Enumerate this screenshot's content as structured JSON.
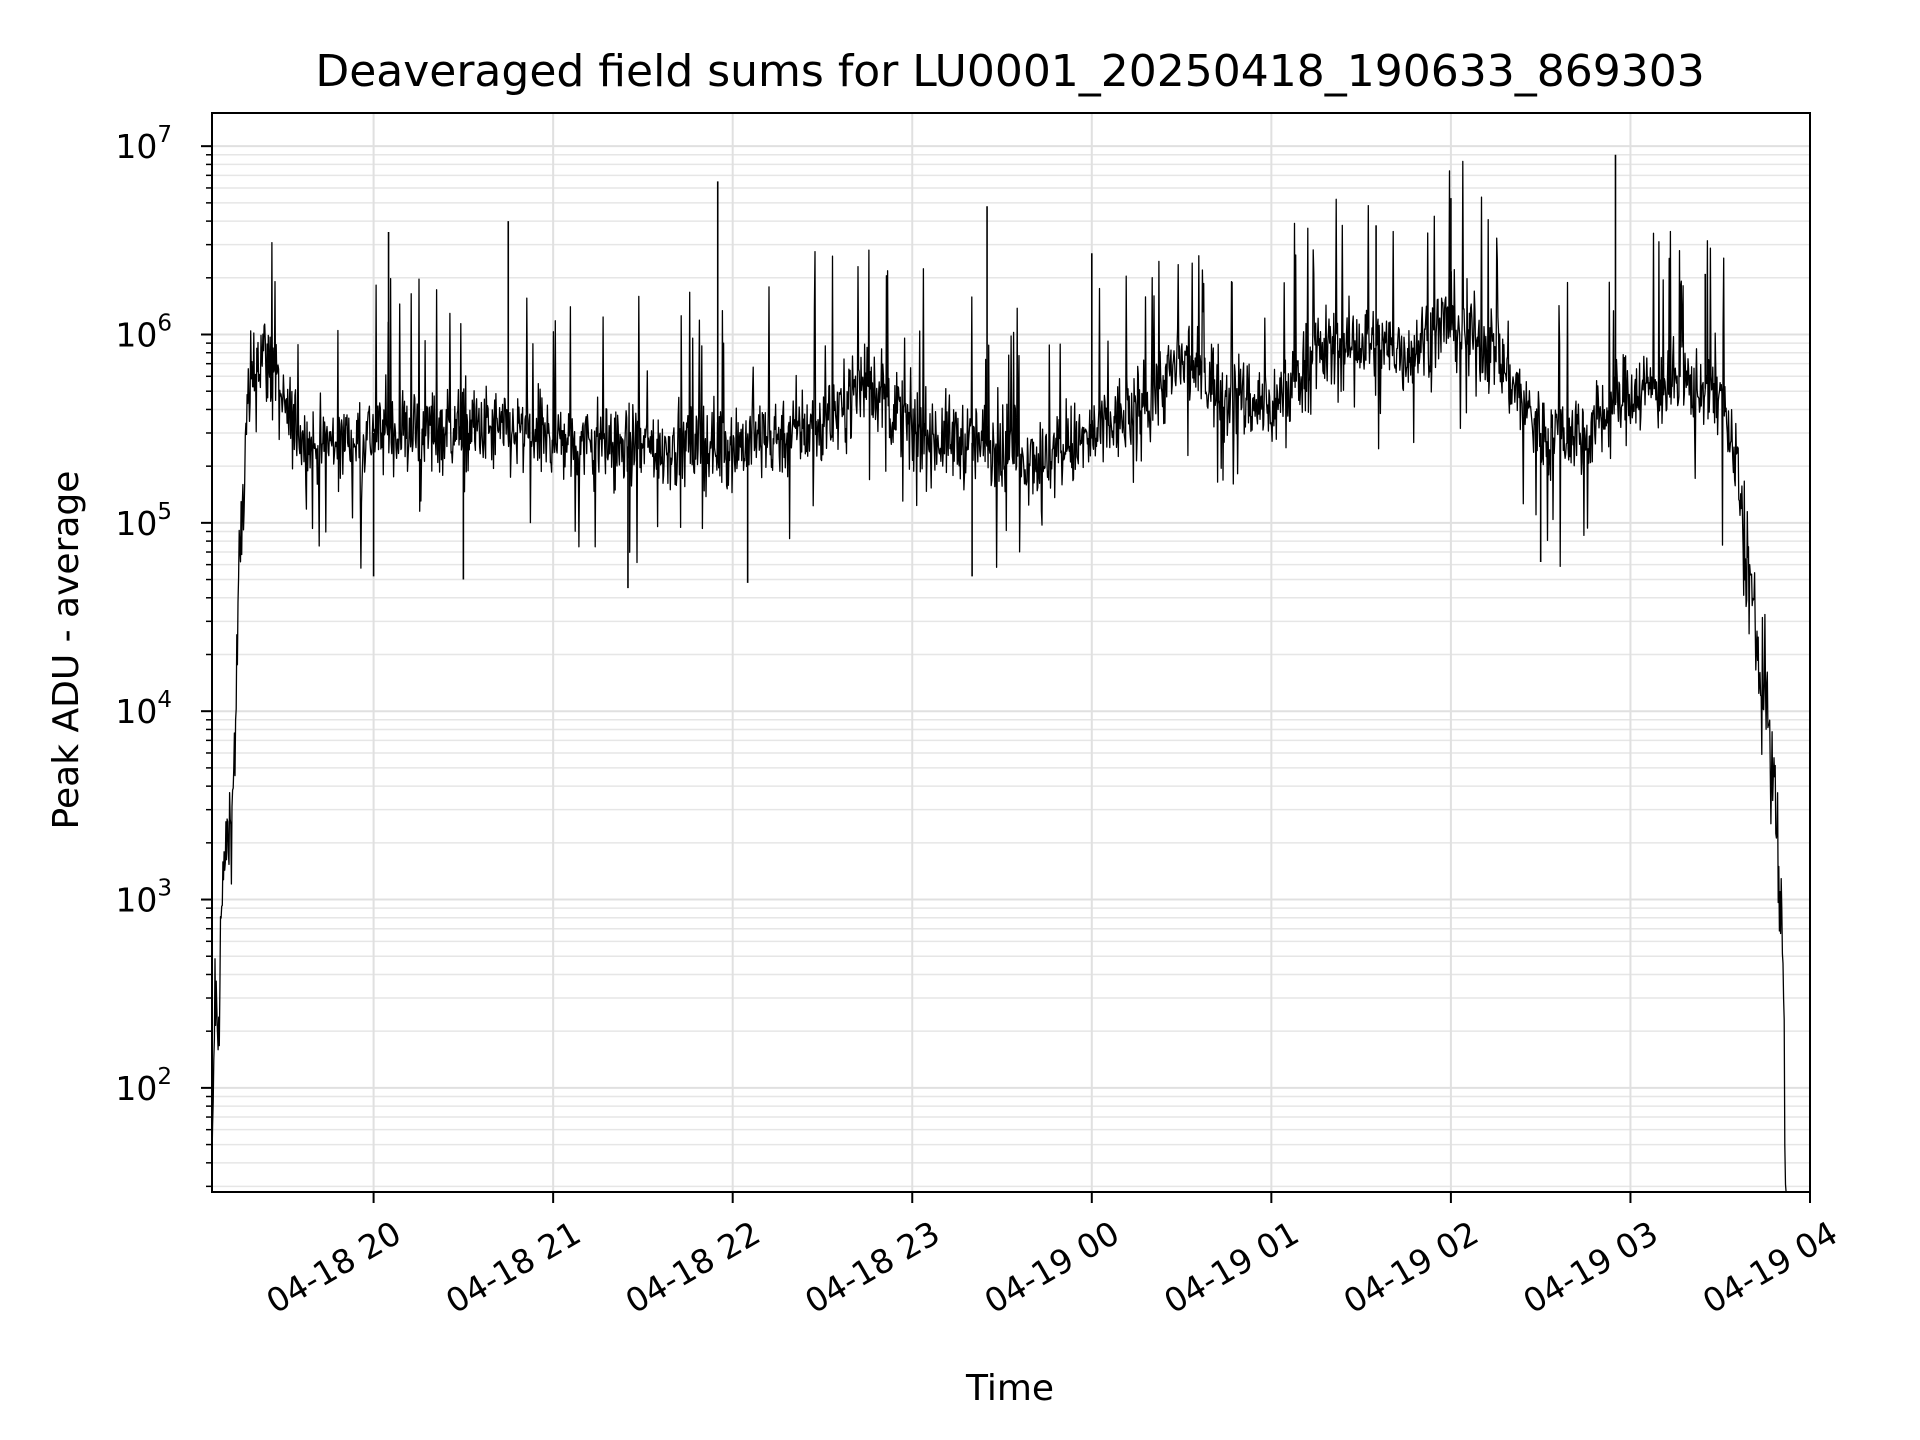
{
  "chart_data": {
    "type": "line",
    "title": "Deaveraged field sums for LU0001_20250418_190633_869303",
    "xlabel": "Time",
    "ylabel": "Peak ADU - average",
    "y_scale": "log",
    "ylim": [
      28,
      15000000
    ],
    "xlim": [
      "2025-04-18 19:06",
      "2025-04-19 04:00"
    ],
    "grid": "major and minor, light gray",
    "legend": "none",
    "line_color": "#000000",
    "x_ticks": [
      {
        "label": "04-18 20",
        "time": "2025-04-18 20:00"
      },
      {
        "label": "04-18 21",
        "time": "2025-04-18 21:00"
      },
      {
        "label": "04-18 22",
        "time": "2025-04-18 22:00"
      },
      {
        "label": "04-18 23",
        "time": "2025-04-18 23:00"
      },
      {
        "label": "04-19 00",
        "time": "2025-04-19 00:00"
      },
      {
        "label": "04-19 01",
        "time": "2025-04-19 01:00"
      },
      {
        "label": "04-19 02",
        "time": "2025-04-19 02:00"
      },
      {
        "label": "04-19 03",
        "time": "2025-04-19 03:00"
      },
      {
        "label": "04-19 04",
        "time": "2025-04-19 04:00"
      }
    ],
    "y_ticks": [
      {
        "base": "10",
        "exp": "2",
        "value": 100
      },
      {
        "base": "10",
        "exp": "3",
        "value": 1000
      },
      {
        "base": "10",
        "exp": "4",
        "value": 10000
      },
      {
        "base": "10",
        "exp": "5",
        "value": 100000
      },
      {
        "base": "10",
        "exp": "6",
        "value": 1000000
      },
      {
        "base": "10",
        "exp": "7",
        "value": 10000000
      }
    ],
    "series": [
      {
        "points": [
          [
            "2025-04-18 19:06",
            30
          ],
          [
            "2025-04-18 19:07",
            350
          ],
          [
            "2025-04-18 19:08",
            150
          ],
          [
            "2025-04-18 19:09",
            700
          ],
          [
            "2025-04-18 19:10",
            1500
          ],
          [
            "2025-04-18 19:12",
            2500
          ],
          [
            "2025-04-18 19:13",
            3500
          ],
          [
            "2025-04-18 19:14",
            10000
          ],
          [
            "2025-04-18 19:15",
            50000
          ],
          [
            "2025-04-18 19:16",
            100000
          ],
          [
            "2025-04-18 19:17",
            200000
          ],
          [
            "2025-04-18 19:18",
            400000
          ],
          [
            "2025-04-18 19:20",
            600000
          ],
          [
            "2025-04-18 19:22",
            800000
          ],
          [
            "2025-04-18 19:25",
            700000
          ],
          [
            "2025-04-18 19:30",
            400000
          ],
          [
            "2025-04-18 19:35",
            300000
          ],
          [
            "2025-04-18 19:40",
            250000
          ],
          [
            "2025-04-18 20:00",
            300000
          ],
          [
            "2025-04-18 20:30",
            320000
          ],
          [
            "2025-04-18 21:00",
            280000
          ],
          [
            "2025-04-18 21:30",
            250000
          ],
          [
            "2025-04-18 22:00",
            260000
          ],
          [
            "2025-04-18 22:30",
            330000
          ],
          [
            "2025-04-18 22:45",
            600000
          ],
          [
            "2025-04-18 23:00",
            300000
          ],
          [
            "2025-04-18 23:30",
            250000
          ],
          [
            "2025-04-18 23:45",
            220000
          ],
          [
            "2025-04-19 00:00",
            280000
          ],
          [
            "2025-04-19 00:15",
            400000
          ],
          [
            "2025-04-19 00:30",
            700000
          ],
          [
            "2025-04-19 00:45",
            500000
          ],
          [
            "2025-04-19 01:00",
            400000
          ],
          [
            "2025-04-19 01:15",
            800000
          ],
          [
            "2025-04-19 01:30",
            900000
          ],
          [
            "2025-04-19 01:45",
            800000
          ],
          [
            "2025-04-19 02:00",
            1200000
          ],
          [
            "2025-04-19 02:15",
            800000
          ],
          [
            "2025-04-19 02:30",
            300000
          ],
          [
            "2025-04-19 02:45",
            300000
          ],
          [
            "2025-04-19 03:00",
            500000
          ],
          [
            "2025-04-19 03:15",
            550000
          ],
          [
            "2025-04-19 03:30",
            500000
          ],
          [
            "2025-04-19 03:35",
            200000
          ],
          [
            "2025-04-19 03:40",
            50000
          ],
          [
            "2025-04-19 03:43",
            15000
          ],
          [
            "2025-04-19 03:46",
            10000
          ],
          [
            "2025-04-19 03:49",
            2000
          ],
          [
            "2025-04-19 03:51",
            500
          ],
          [
            "2025-04-19 03:52",
            30
          ]
        ],
        "spikes": [
          [
            "2025-04-18 20:05",
            3500000
          ],
          [
            "2025-04-18 20:45",
            4000000
          ],
          [
            "2025-04-18 21:55",
            6500000
          ],
          [
            "2025-04-18 23:25",
            4800000
          ],
          [
            "2025-04-19 00:00",
            2700000
          ],
          [
            "2025-04-19 01:35",
            3800000
          ],
          [
            "2025-04-19 02:00",
            5300000
          ],
          [
            "2025-04-19 02:55",
            9000000
          ],
          [
            "2025-04-19 03:25",
            2100000
          ]
        ],
        "dips": [
          [
            "2025-04-18 20:00",
            52000
          ],
          [
            "2025-04-18 20:30",
            50000
          ],
          [
            "2025-04-18 21:25",
            45000
          ],
          [
            "2025-04-18 22:05",
            48000
          ],
          [
            "2025-04-18 23:20",
            52000
          ],
          [
            "2025-04-19 02:30",
            62000
          ]
        ]
      }
    ]
  }
}
